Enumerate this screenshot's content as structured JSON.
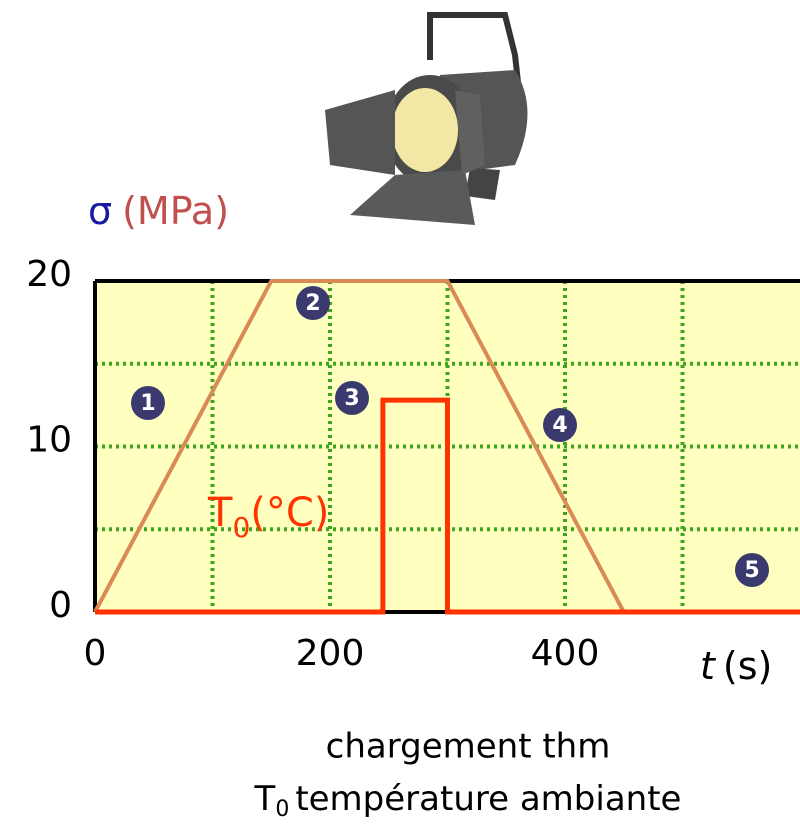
{
  "chart_data": {
    "type": "line",
    "title": "σ",
    "title_unit": "(MPa)",
    "xlabel": "t",
    "xlabel_unit": "(s)",
    "series": [
      {
        "color": "#d98a55",
        "x": [
          0,
          150,
          300,
          450,
          600
        ],
        "values": [
          0,
          20,
          20,
          0,
          0
        ]
      },
      {
        "color": "#ff3300",
        "x": [
          0,
          245,
          245,
          300,
          300,
          600
        ],
        "values": [
          0,
          0,
          12.8,
          12.8,
          0,
          0
        ],
        "label": "T",
        "label_sub": "0",
        "label_unit": "(°C)"
      }
    ],
    "xlim": [
      0,
      600
    ],
    "ylim": [
      0,
      20
    ],
    "xticks": [
      0,
      200,
      400
    ],
    "yticks": [
      0,
      10,
      20
    ],
    "x_grid": [
      100,
      200,
      300,
      400,
      500
    ],
    "y_grid": [
      5,
      10,
      15
    ],
    "grid_color": "#3fa51f",
    "background": "#ffffc0",
    "annotations": [
      "1",
      "2",
      "3",
      "4",
      "5"
    ]
  },
  "caption": {
    "line1": "chargement thm",
    "line2_symbol": "T",
    "line2_sub": "0",
    "line2_text": "température ambiante"
  }
}
